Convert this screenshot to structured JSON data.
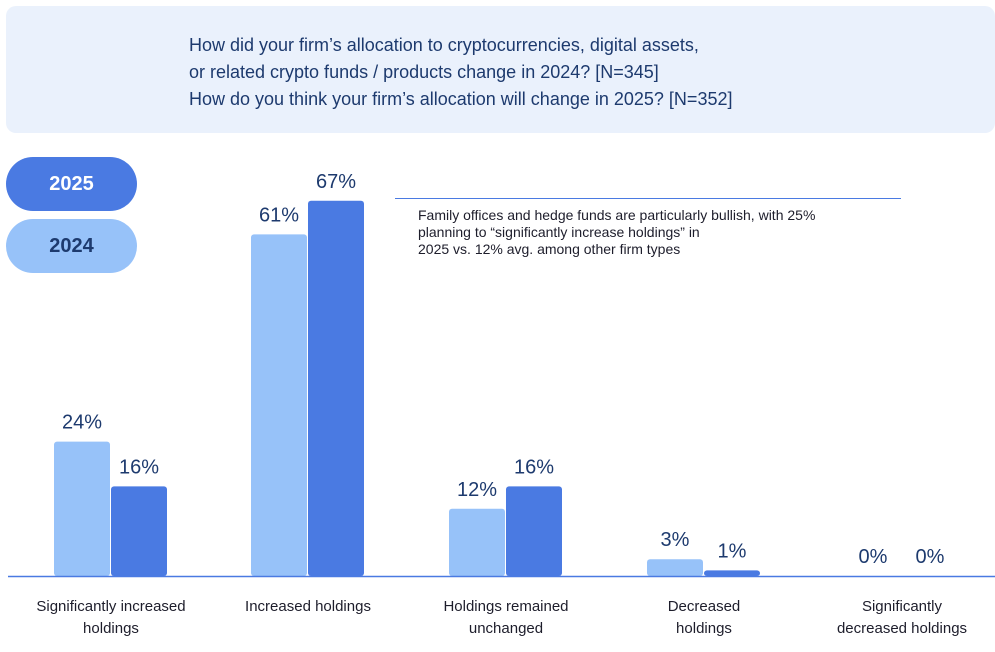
{
  "question": {
    "lines": [
      "How did your firm’s allocation to cryptocurrencies, digital assets,",
      "or related crypto funds / products change in 2024? [N=345]",
      "How do you think your firm’s allocation will change in 2025? [N=352]"
    ]
  },
  "legend": [
    {
      "label": "2025",
      "color": "#4a7ae2"
    },
    {
      "label": "2024",
      "color": "#97c2f9"
    }
  ],
  "annotation": {
    "lines": [
      "Family offices and hedge funds are particularly bullish, with 25%",
      "planning to “significantly increase holdings” in",
      "2025 vs. 12% avg. among other firm types"
    ]
  },
  "categories": [
    [
      "Significantly increased",
      "holdings"
    ],
    [
      "Increased holdings"
    ],
    [
      "Holdings remained",
      "unchanged"
    ],
    [
      "Decreased",
      "holdings"
    ],
    [
      "Significantly",
      "decreased holdings"
    ]
  ],
  "chart_data": {
    "type": "bar",
    "categories": [
      "Significantly increased holdings",
      "Increased holdings",
      "Holdings remained unchanged",
      "Decreased holdings",
      "Significantly decreased holdings"
    ],
    "series": [
      {
        "name": "2024",
        "color": "#97c2f9",
        "values": [
          24,
          61,
          12,
          3,
          0
        ],
        "labels": [
          "24%",
          "61%",
          "12%",
          "3%",
          "0%"
        ]
      },
      {
        "name": "2025",
        "color": "#4a7ae2",
        "values": [
          16,
          67,
          16,
          1,
          0
        ],
        "labels": [
          "16%",
          "67%",
          "16%",
          "1%",
          "0%"
        ]
      }
    ],
    "ylim": [
      0,
      70
    ],
    "grid": false,
    "legend_position": "top-left",
    "value_label_color": "#1d3a6e",
    "baseline_color": "#4a7ae2"
  }
}
